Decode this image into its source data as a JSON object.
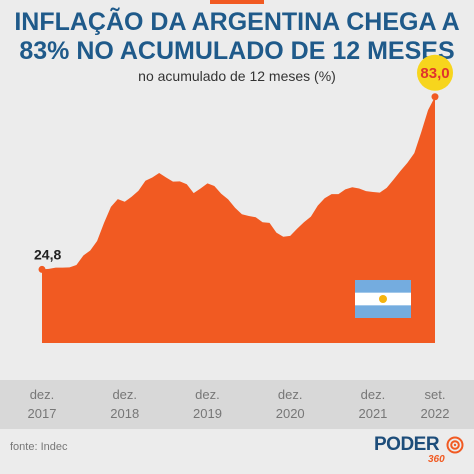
{
  "header": {
    "title_line1": "INFLAÇÃO DA ARGENTINA CHEGA A",
    "title_line2": "83% NO ACUMULADO DE 12 MESES",
    "subtitle": "no acumulado de 12 meses (%)"
  },
  "chart_data": {
    "type": "area",
    "title": "INFLAÇÃO DA ARGENTINA CHEGA A 83% NO ACUMULADO DE 12 MESES",
    "subtitle": "no acumulado de 12 meses (%)",
    "x_ticks": [
      {
        "line1": "dez.",
        "line2": "2017",
        "value": 2017.917
      },
      {
        "line1": "dez.",
        "line2": "2018",
        "value": 2018.917
      },
      {
        "line1": "dez.",
        "line2": "2019",
        "value": 2019.917
      },
      {
        "line1": "dez.",
        "line2": "2020",
        "value": 2020.917
      },
      {
        "line1": "dez.",
        "line2": "2021",
        "value": 2021.917
      },
      {
        "line1": "set.",
        "line2": "2022",
        "value": 2022.667
      }
    ],
    "x_range": [
      2017.917,
      2022.667
    ],
    "ylim": [
      0,
      90
    ],
    "series": [
      {
        "x": [
          2017.917,
          2018.0,
          2018.083,
          2018.167,
          2018.25,
          2018.333,
          2018.417,
          2018.5,
          2018.583,
          2018.667,
          2018.75,
          2018.833,
          2018.917,
          2019.0,
          2019.083,
          2019.167,
          2019.25,
          2019.333,
          2019.417,
          2019.5,
          2019.583,
          2019.667,
          2019.75,
          2019.833,
          2019.917,
          2020.0,
          2020.083,
          2020.167,
          2020.25,
          2020.333,
          2020.417,
          2020.5,
          2020.583,
          2020.667,
          2020.75,
          2020.833,
          2020.917,
          2021.0,
          2021.083,
          2021.167,
          2021.25,
          2021.333,
          2021.417,
          2021.5,
          2021.583,
          2021.667,
          2021.75,
          2021.833,
          2021.917,
          2022.0,
          2022.083,
          2022.167,
          2022.25,
          2022.333,
          2022.417,
          2022.5,
          2022.583,
          2022.667
        ],
        "values": [
          24.8,
          25.0,
          25.4,
          25.4,
          25.5,
          26.3,
          29.5,
          31.2,
          34.4,
          40.5,
          45.9,
          48.5,
          47.6,
          49.3,
          51.3,
          54.7,
          55.8,
          57.3,
          55.8,
          54.4,
          54.5,
          53.5,
          50.5,
          52.1,
          53.8,
          52.9,
          50.3,
          48.4,
          45.6,
          43.4,
          42.8,
          42.4,
          40.7,
          40.5,
          37.2,
          35.8,
          36.1,
          38.5,
          40.7,
          42.6,
          46.3,
          48.8,
          50.2,
          50.2,
          51.8,
          52.5,
          52.1,
          51.2,
          50.9,
          50.7,
          52.3,
          55.1,
          58.0,
          60.7,
          64.0,
          71.0,
          78.5,
          83.0
        ]
      }
    ],
    "data_labels": [
      {
        "text": "24,8",
        "x": 2017.917,
        "y": 24.8
      },
      {
        "text": "83,0",
        "x": 2022.667,
        "y": 83.0
      }
    ],
    "colors": {
      "area": "#f15a22",
      "highlight": "#f7d51d",
      "axis_band": "#d8d8d8"
    },
    "grid": false
  },
  "footer": {
    "source": "fonte: Indec",
    "brand": "PODER",
    "brand_sub": "360"
  },
  "icons": {
    "flag": "argentina-flag-icon"
  }
}
